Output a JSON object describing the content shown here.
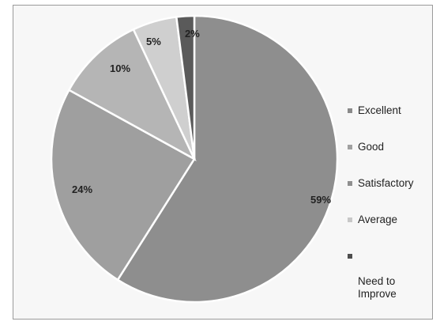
{
  "chart_data": {
    "type": "pie",
    "categories": [
      "Excellent",
      "Good",
      "Satisfactory",
      "Average",
      "Need to Improve"
    ],
    "values": [
      59,
      24,
      10,
      5,
      2
    ],
    "labels": [
      "59%",
      "24%",
      "10%",
      "5%",
      "2%"
    ],
    "colors": [
      "#8e8e8e",
      "#9f9f9f",
      "#b5b5b5",
      "#cfcfcf",
      "#5a5a5a"
    ],
    "slice_order_clockwise_from_top": [
      "Excellent",
      "Good",
      "Satisfactory",
      "Average",
      "Need to Improve"
    ],
    "legend_position": "right"
  },
  "legend": {
    "items": [
      {
        "label": "Excellent",
        "color": "#8a8a8a"
      },
      {
        "label": "Good",
        "color": "#a0a0a0"
      },
      {
        "label": "Satisfactory",
        "color": "#8f8f8f"
      },
      {
        "label": "Average",
        "color": "#c8c8c8"
      },
      {
        "label": "Need to\nImprove",
        "color": "#4e4e4e"
      }
    ]
  }
}
